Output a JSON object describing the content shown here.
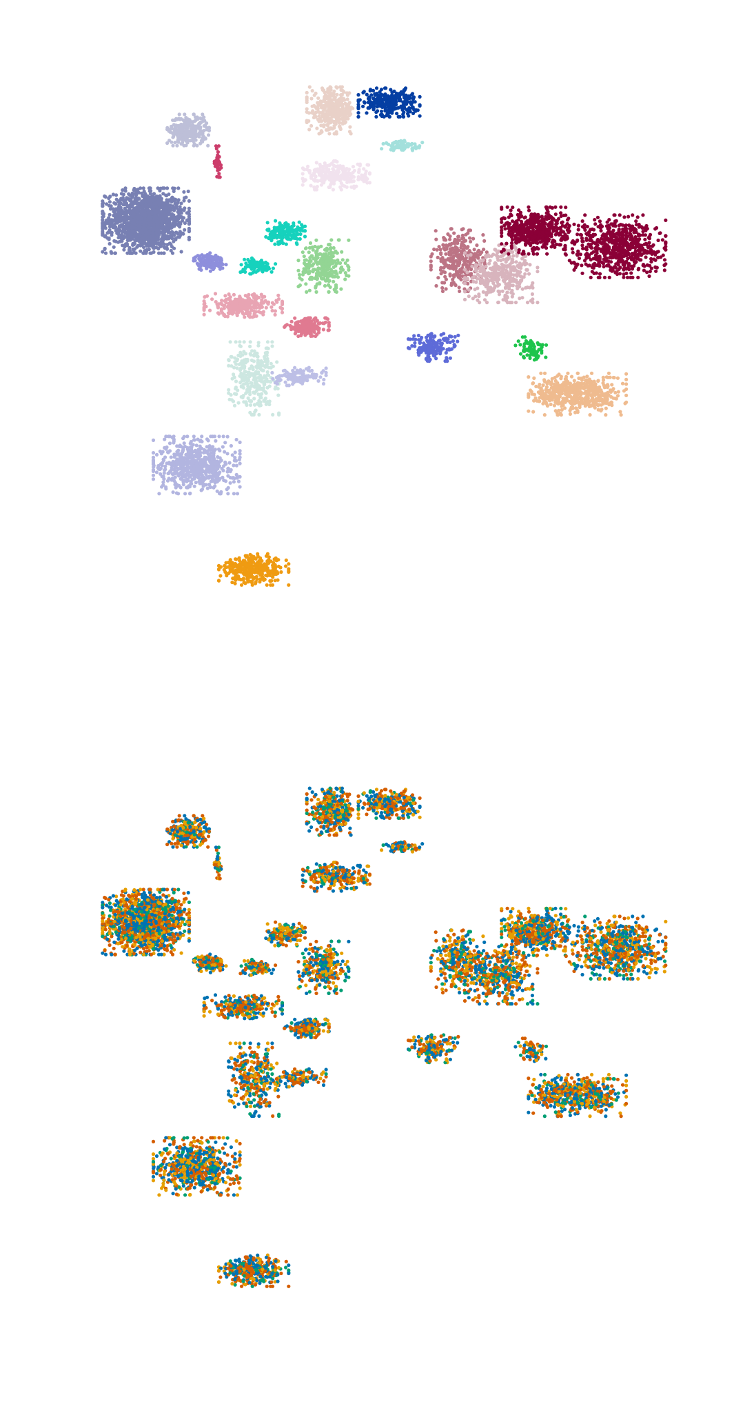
{
  "chart_data": [
    {
      "type": "scatter",
      "title": "",
      "xlabel": "",
      "ylabel": "",
      "axes_visible": false,
      "grid": false,
      "legend": "none",
      "coloring": "cluster",
      "clusters": [
        {
          "id": "c1",
          "color": "#7880b3",
          "center": [
            -8.2,
            6.6
          ],
          "spread": [
            1.55,
            1.25
          ],
          "points": 1400
        },
        {
          "id": "c2",
          "color": "#bdbfd8",
          "center": [
            -6.2,
            11.2
          ],
          "spread": [
            0.75,
            0.6
          ],
          "points": 300
        },
        {
          "id": "c3",
          "color": "#cc3d6b",
          "center": [
            -4.8,
            9.6
          ],
          "spread": [
            0.12,
            0.6
          ],
          "points": 40
        },
        {
          "id": "c4",
          "color": "#8e8fdc",
          "center": [
            -5.2,
            4.5
          ],
          "spread": [
            0.6,
            0.35
          ],
          "points": 120
        },
        {
          "id": "c5",
          "color": "#16d2bd",
          "center": [
            -1.6,
            6.0
          ],
          "spread": [
            0.7,
            0.45
          ],
          "points": 170
        },
        {
          "id": "c6",
          "color": "#16d2bd",
          "center": [
            -3.0,
            4.3
          ],
          "spread": [
            0.7,
            0.3
          ],
          "points": 100
        },
        {
          "id": "c7",
          "color": "#93d594",
          "center": [
            0.2,
            4.3
          ],
          "spread": [
            0.9,
            1.0
          ],
          "points": 260
        },
        {
          "id": "c8",
          "color": "#e8a4b3",
          "center": [
            -3.6,
            2.3
          ],
          "spread": [
            1.4,
            0.45
          ],
          "points": 280
        },
        {
          "id": "c9",
          "color": "#e07a91",
          "center": [
            -0.6,
            1.2
          ],
          "spread": [
            0.8,
            0.35
          ],
          "points": 180
        },
        {
          "id": "c10",
          "color": "#e9d1c8",
          "center": [
            0.6,
            12.2
          ],
          "spread": [
            0.9,
            0.9
          ],
          "points": 340
        },
        {
          "id": "c11",
          "color": "#053fa3",
          "center": [
            3.3,
            12.6
          ],
          "spread": [
            1.1,
            0.55
          ],
          "points": 280
        },
        {
          "id": "c12",
          "color": "#f1e2ee",
          "center": [
            0.8,
            8.9
          ],
          "spread": [
            1.2,
            0.55
          ],
          "points": 260
        },
        {
          "id": "c13",
          "color": "#a3e0dc",
          "center": [
            4.0,
            10.4
          ],
          "spread": [
            0.8,
            0.2
          ],
          "points": 70
        },
        {
          "id": "c14",
          "color": "#bc7485",
          "center": [
            6.6,
            4.6
          ],
          "spread": [
            1.0,
            1.2
          ],
          "points": 300
        },
        {
          "id": "c15",
          "color": "#d8b4bd",
          "center": [
            8.6,
            3.9
          ],
          "spread": [
            1.3,
            1.1
          ],
          "points": 360
        },
        {
          "id": "c16",
          "color": "#8b0037",
          "center": [
            10.2,
            6.1
          ],
          "spread": [
            1.2,
            0.9
          ],
          "points": 480
        },
        {
          "id": "c17",
          "color": "#8b0037",
          "center": [
            14.0,
            5.3
          ],
          "spread": [
            1.8,
            1.2
          ],
          "points": 640
        },
        {
          "id": "c18",
          "color": "#5e6bd8",
          "center": [
            5.4,
            0.2
          ],
          "spread": [
            0.9,
            0.55
          ],
          "points": 170
        },
        {
          "id": "c19",
          "color": "#efbb8f",
          "center": [
            12.2,
            -2.2
          ],
          "spread": [
            1.75,
            0.8
          ],
          "points": 520
        },
        {
          "id": "c20",
          "color": "#1ec44c",
          "center": [
            10.0,
            0.1
          ],
          "spread": [
            0.55,
            0.45
          ],
          "points": 70
        },
        {
          "id": "c21",
          "color": "#cde7e1",
          "center": [
            -3.1,
            -1.4
          ],
          "spread": [
            0.9,
            1.4
          ],
          "points": 300
        },
        {
          "id": "c22",
          "color": "#bdbfe6",
          "center": [
            -1.0,
            -1.3
          ],
          "spread": [
            1.0,
            0.35
          ],
          "points": 120
        },
        {
          "id": "c23",
          "color": "#b2b5e0",
          "center": [
            -5.8,
            -5.8
          ],
          "spread": [
            1.55,
            1.1
          ],
          "points": 620
        },
        {
          "id": "c24",
          "color": "#ef9b12",
          "center": [
            -3.1,
            -11.1
          ],
          "spread": [
            1.25,
            0.6
          ],
          "points": 320
        }
      ]
    },
    {
      "type": "scatter",
      "title": "",
      "xlabel": "",
      "ylabel": "",
      "axes_visible": false,
      "grid": false,
      "legend": "none",
      "coloring": "group",
      "group_colors": [
        "#0072b2",
        "#d55e00",
        "#e69f00",
        "#009e73"
      ],
      "group_weights": [
        0.3,
        0.33,
        0.24,
        0.13
      ]
    }
  ]
}
